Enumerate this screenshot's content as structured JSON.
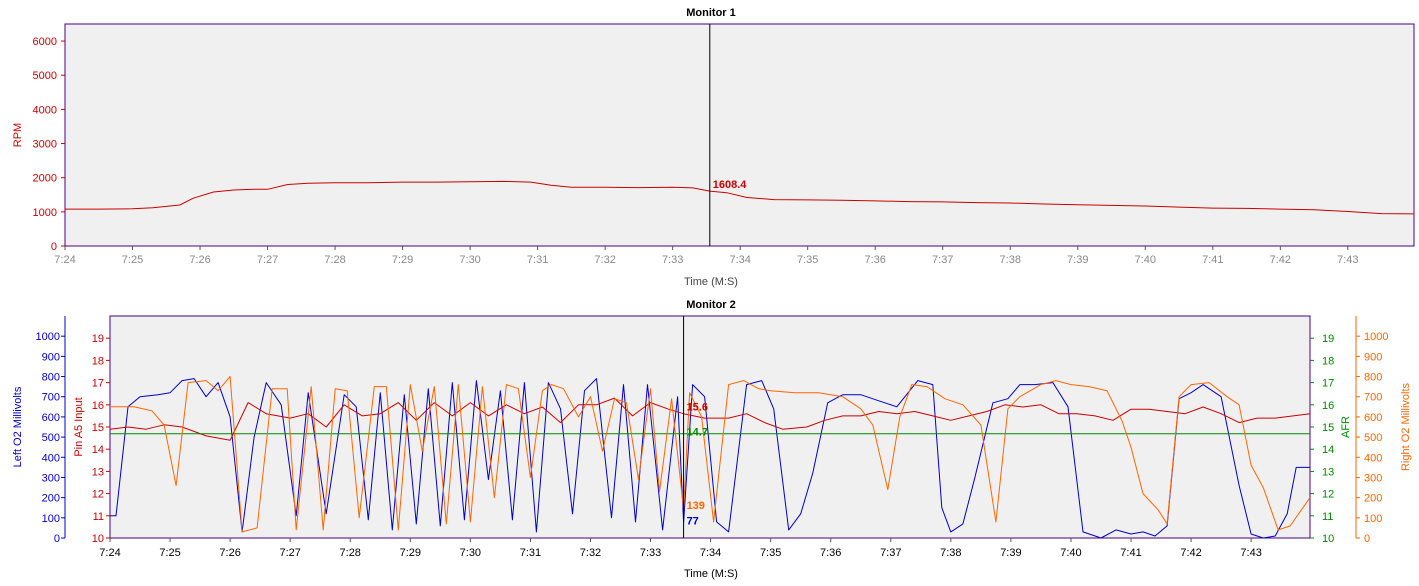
{
  "chart_data": [
    {
      "type": "line",
      "title": "Monitor 1",
      "xlabel": "Time (M:S)",
      "x_ticks": [
        "7:24",
        "7:25",
        "7:26",
        "7:27",
        "7:28",
        "7:29",
        "7:30",
        "7:31",
        "7:32",
        "7:33",
        "7:34",
        "7:35",
        "7:36",
        "7:37",
        "7:38",
        "7:39",
        "7:40",
        "7:41",
        "7:42",
        "7:43"
      ],
      "x_range_minutes": [
        24,
        43.98
      ],
      "y_axes": [
        {
          "label": "RPM",
          "range": [
            0,
            6500
          ],
          "ticks": [
            "0",
            "1000",
            "2000",
            "3000",
            "4000",
            "5000",
            "6000"
          ],
          "side": "left",
          "color": "#cc0000"
        }
      ],
      "cursor": {
        "x_minutes": 33.55
      },
      "series": [
        {
          "name": "RPM",
          "color": "#cc0000",
          "axis": 0,
          "x": [
            24,
            24.5,
            25,
            25.3,
            25.7,
            25.9,
            26.2,
            26.5,
            26.8,
            27,
            27.3,
            27.6,
            28,
            28.5,
            29,
            29.5,
            30,
            30.5,
            30.9,
            31.2,
            31.5,
            32,
            32.5,
            33,
            33.3,
            33.55,
            33.8,
            34.1,
            34.5,
            35,
            35.5,
            36,
            36.5,
            37,
            37.5,
            38,
            38.5,
            39,
            39.5,
            40,
            40.5,
            41,
            41.5,
            42,
            42.5,
            43,
            43.5,
            43.98
          ],
          "y": [
            1080,
            1080,
            1090,
            1120,
            1200,
            1400,
            1580,
            1640,
            1660,
            1660,
            1800,
            1840,
            1850,
            1850,
            1870,
            1870,
            1880,
            1890,
            1870,
            1780,
            1720,
            1720,
            1710,
            1720,
            1700,
            1608,
            1560,
            1420,
            1360,
            1350,
            1340,
            1320,
            1300,
            1290,
            1270,
            1260,
            1230,
            1210,
            1190,
            1170,
            1140,
            1110,
            1100,
            1080,
            1060,
            1010,
            950,
            940
          ]
        }
      ],
      "cursor_labels": [
        {
          "text": "1608.4",
          "color": "#cc0000"
        }
      ]
    },
    {
      "type": "line",
      "title": "Monitor 2",
      "xlabel": "Time (M:S)",
      "x_ticks": [
        "7:24",
        "7:25",
        "7:26",
        "7:27",
        "7:28",
        "7:29",
        "7:30",
        "7:31",
        "7:32",
        "7:33",
        "7:34",
        "7:35",
        "7:36",
        "7:37",
        "7:38",
        "7:39",
        "7:40",
        "7:41",
        "7:42",
        "7:43"
      ],
      "x_range_minutes": [
        24,
        43.98
      ],
      "y_axes": [
        {
          "label": "Left O2 Millivolts",
          "range": [
            0,
            1100
          ],
          "ticks": [
            "0",
            "100",
            "200",
            "300",
            "400",
            "500",
            "600",
            "700",
            "800",
            "900",
            "1000"
          ],
          "side": "left-outer",
          "color": "#0000cc"
        },
        {
          "label": "Pin A5 Input",
          "range": [
            10,
            20
          ],
          "ticks": [
            "10",
            "11",
            "12",
            "13",
            "14",
            "15",
            "16",
            "17",
            "18",
            "19"
          ],
          "side": "left-inner",
          "color": "#cc0000"
        },
        {
          "label": "AFR",
          "range": [
            10,
            20
          ],
          "ticks": [
            "10",
            "11",
            "12",
            "13",
            "14",
            "15",
            "16",
            "17",
            "18",
            "19"
          ],
          "side": "right-inner",
          "color": "#008800"
        },
        {
          "label": "Right O2 Millivolts",
          "range": [
            0,
            1100
          ],
          "ticks": [
            "0",
            "100",
            "200",
            "300",
            "400",
            "500",
            "600",
            "700",
            "800",
            "900",
            "1000"
          ],
          "side": "right-outer",
          "color": "#ff6600"
        }
      ],
      "cursor": {
        "x_minutes": 33.55
      },
      "series": [
        {
          "name": "Left O2 Millivolts",
          "color": "#0000cc",
          "axis": 0,
          "x": [
            24,
            24.1,
            24.3,
            24.5,
            24.8,
            25,
            25.2,
            25.4,
            25.6,
            25.8,
            26.0,
            26.2,
            26.4,
            26.6,
            26.85,
            27.1,
            27.3,
            27.6,
            27.9,
            28.1,
            28.3,
            28.5,
            28.7,
            28.9,
            29.1,
            29.3,
            29.5,
            29.7,
            29.9,
            30.1,
            30.3,
            30.5,
            30.7,
            30.9,
            31.1,
            31.3,
            31.5,
            31.7,
            31.9,
            32.1,
            32.35,
            32.55,
            32.75,
            32.95,
            33.2,
            33.45,
            33.55,
            33.7,
            33.9,
            34.1,
            34.3,
            34.6,
            34.85,
            35.05,
            35.3,
            35.5,
            35.7,
            35.95,
            36.2,
            36.5,
            36.8,
            37.1,
            37.45,
            37.7,
            37.85,
            38.0,
            38.2,
            38.4,
            38.7,
            38.95,
            39.15,
            39.4,
            39.7,
            39.95,
            40.2,
            40.5,
            40.75,
            41.0,
            41.2,
            41.4,
            41.6,
            41.8,
            42.0,
            42.2,
            42.5,
            42.8,
            43.0,
            43.2,
            43.4,
            43.6,
            43.75,
            43.98
          ],
          "y": [
            110,
            110,
            650,
            700,
            710,
            720,
            780,
            790,
            700,
            770,
            600,
            30,
            500,
            770,
            660,
            110,
            720,
            120,
            710,
            650,
            90,
            720,
            40,
            710,
            70,
            740,
            60,
            770,
            90,
            780,
            290,
            730,
            90,
            770,
            30,
            770,
            640,
            120,
            730,
            790,
            100,
            760,
            80,
            760,
            40,
            700,
            77,
            760,
            700,
            80,
            30,
            760,
            780,
            640,
            40,
            120,
            320,
            670,
            710,
            710,
            680,
            650,
            780,
            760,
            150,
            30,
            70,
            300,
            670,
            690,
            760,
            760,
            770,
            650,
            30,
            0,
            40,
            20,
            30,
            10,
            60,
            690,
            720,
            760,
            700,
            260,
            20,
            0,
            10,
            120,
            350,
            350
          ]
        },
        {
          "name": "Pin A5 Input",
          "color": "#cc0000",
          "axis": 1,
          "x": [
            24,
            24.3,
            24.6,
            24.9,
            25.2,
            25.6,
            26.0,
            26.3,
            26.6,
            27.0,
            27.3,
            27.6,
            27.9,
            28.2,
            28.5,
            28.8,
            29.1,
            29.4,
            29.7,
            30.0,
            30.3,
            30.6,
            30.9,
            31.2,
            31.5,
            31.8,
            32.1,
            32.4,
            32.7,
            33.0,
            33.3,
            33.55,
            33.9,
            34.3,
            34.6,
            34.9,
            35.2,
            35.6,
            35.9,
            36.2,
            36.5,
            36.8,
            37.1,
            37.4,
            37.7,
            38.0,
            38.3,
            38.6,
            38.9,
            39.2,
            39.5,
            39.8,
            40.1,
            40.4,
            40.7,
            41.0,
            41.3,
            41.6,
            41.9,
            42.2,
            42.5,
            42.8,
            43.1,
            43.4,
            43.7,
            43.98
          ],
          "y": [
            14.9,
            15.0,
            14.9,
            15.1,
            15.0,
            14.6,
            14.4,
            16.1,
            15.6,
            15.4,
            15.6,
            15.0,
            16.0,
            15.5,
            15.6,
            16.1,
            15.3,
            16.1,
            15.5,
            16.1,
            15.5,
            16.0,
            15.6,
            15.9,
            15.2,
            16.0,
            16.0,
            16.3,
            15.5,
            16.1,
            15.8,
            15.6,
            15.4,
            15.4,
            15.6,
            15.2,
            14.9,
            15.0,
            15.3,
            15.5,
            15.5,
            15.7,
            15.6,
            15.7,
            15.5,
            15.3,
            15.5,
            15.7,
            16.0,
            15.9,
            16.0,
            15.6,
            15.6,
            15.5,
            15.3,
            15.8,
            15.8,
            15.7,
            15.6,
            15.9,
            15.6,
            15.2,
            15.4,
            15.4,
            15.5,
            15.6
          ]
        },
        {
          "name": "AFR",
          "color": "#008800",
          "axis": 2,
          "x": [
            24,
            43.98
          ],
          "y": [
            14.7,
            14.7
          ]
        },
        {
          "name": "Right O2 Millivolts",
          "color": "#ff6600",
          "axis": 3,
          "x": [
            24,
            24.4,
            24.7,
            24.9,
            25.1,
            25.3,
            25.6,
            25.8,
            26.0,
            26.2,
            26.45,
            26.7,
            26.95,
            27.1,
            27.35,
            27.55,
            27.75,
            27.95,
            28.15,
            28.4,
            28.6,
            28.8,
            29.0,
            29.2,
            29.4,
            29.6,
            29.8,
            30.0,
            30.2,
            30.4,
            30.6,
            30.8,
            31.0,
            31.2,
            31.35,
            31.55,
            31.8,
            32.0,
            32.2,
            32.4,
            32.6,
            32.8,
            33.0,
            33.15,
            33.35,
            33.55,
            33.65,
            33.85,
            34.05,
            34.3,
            34.55,
            34.8,
            35.0,
            35.4,
            35.8,
            36.2,
            36.5,
            36.7,
            36.95,
            37.15,
            37.35,
            37.6,
            37.9,
            38.2,
            38.5,
            38.75,
            38.95,
            39.15,
            39.5,
            39.75,
            40.0,
            40.3,
            40.6,
            40.85,
            41.0,
            41.2,
            41.45,
            41.6,
            41.8,
            42.0,
            42.3,
            42.6,
            42.8,
            43.0,
            43.2,
            43.45,
            43.65,
            43.98
          ],
          "y": [
            650,
            650,
            630,
            560,
            260,
            770,
            780,
            730,
            800,
            30,
            50,
            740,
            740,
            40,
            750,
            40,
            740,
            730,
            100,
            750,
            750,
            40,
            760,
            430,
            750,
            70,
            760,
            80,
            750,
            200,
            760,
            740,
            300,
            730,
            760,
            740,
            600,
            700,
            430,
            690,
            670,
            290,
            740,
            230,
            690,
            139,
            720,
            600,
            80,
            760,
            780,
            740,
            730,
            720,
            720,
            700,
            640,
            560,
            240,
            600,
            760,
            750,
            690,
            660,
            560,
            80,
            640,
            700,
            760,
            780,
            760,
            750,
            730,
            580,
            450,
            220,
            140,
            70,
            700,
            760,
            770,
            700,
            660,
            360,
            250,
            40,
            60,
            200
          ]
        }
      ],
      "cursor_labels": [
        {
          "text": "15.6",
          "color": "#cc0000"
        },
        {
          "text": "14.7",
          "color": "#008800"
        },
        {
          "text": "139",
          "color": "#ff6600"
        },
        {
          "text": "77",
          "color": "#0000cc"
        }
      ]
    }
  ]
}
